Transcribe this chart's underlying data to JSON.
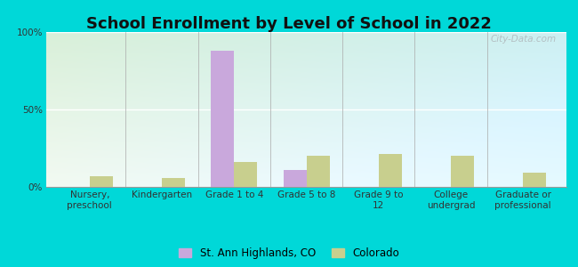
{
  "title": "School Enrollment by Level of School in 2022",
  "categories": [
    "Nursery,\npreschool",
    "Kindergarten",
    "Grade 1 to 4",
    "Grade 5 to 8",
    "Grade 9 to\n12",
    "College\nundergrad",
    "Graduate or\nprofessional"
  ],
  "series1_label": "St. Ann Highlands, CO",
  "series2_label": "Colorado",
  "series1_values": [
    0,
    0,
    88,
    11,
    0,
    0,
    0
  ],
  "series2_values": [
    7,
    6,
    16,
    20,
    21,
    20,
    9
  ],
  "series1_color": "#c9a8dc",
  "series2_color": "#c8cf8e",
  "ylim": [
    0,
    100
  ],
  "yticks": [
    0,
    50,
    100
  ],
  "ytick_labels": [
    "0%",
    "50%",
    "100%"
  ],
  "background_outer": "#00d8d8",
  "title_fontsize": 13,
  "tick_fontsize": 7.5,
  "legend_fontsize": 8.5,
  "bar_width": 0.32,
  "watermark": "City-Data.com"
}
